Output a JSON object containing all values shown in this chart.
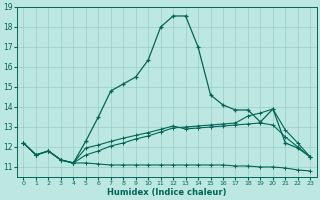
{
  "xlabel": "Humidex (Indice chaleur)",
  "bg_color": "#bde8e2",
  "grid_color": "#99cccc",
  "line_color": "#006655",
  "xlim": [
    -0.5,
    23.5
  ],
  "ylim": [
    10.5,
    19.0
  ],
  "xticks": [
    0,
    1,
    2,
    3,
    4,
    5,
    6,
    7,
    8,
    9,
    10,
    11,
    12,
    13,
    14,
    15,
    16,
    17,
    18,
    19,
    20,
    21,
    22,
    23
  ],
  "yticks": [
    11,
    12,
    13,
    14,
    15,
    16,
    17,
    18,
    19
  ],
  "line1_x": [
    0,
    1,
    2,
    3,
    4,
    5,
    6,
    7,
    8,
    9,
    10,
    11,
    12,
    13,
    14,
    15,
    16,
    17,
    18,
    19,
    20,
    21,
    22,
    23
  ],
  "line1_y": [
    12.2,
    11.6,
    11.8,
    11.35,
    11.2,
    12.3,
    13.5,
    14.8,
    15.15,
    15.5,
    16.35,
    18.0,
    18.55,
    18.55,
    17.0,
    14.6,
    14.1,
    13.85,
    13.85,
    13.25,
    13.9,
    12.2,
    11.95,
    11.5
  ],
  "line2_x": [
    0,
    1,
    2,
    3,
    4,
    5,
    6,
    7,
    8,
    9,
    10,
    11,
    12,
    13,
    14,
    15,
    16,
    17,
    18,
    19,
    20,
    21,
    22,
    23
  ],
  "line2_y": [
    12.2,
    11.6,
    11.8,
    11.35,
    11.2,
    11.6,
    11.8,
    12.05,
    12.2,
    12.4,
    12.55,
    12.75,
    12.95,
    13.0,
    13.05,
    13.1,
    13.15,
    13.2,
    13.55,
    13.7,
    13.9,
    12.85,
    12.2,
    11.5
  ],
  "line3_x": [
    0,
    1,
    2,
    3,
    4,
    5,
    6,
    7,
    8,
    9,
    10,
    11,
    12,
    13,
    14,
    15,
    16,
    17,
    18,
    19,
    20,
    21,
    22,
    23
  ],
  "line3_y": [
    12.2,
    11.6,
    11.8,
    11.35,
    11.2,
    11.2,
    11.15,
    11.1,
    11.1,
    11.1,
    11.1,
    11.1,
    11.1,
    11.1,
    11.1,
    11.1,
    11.1,
    11.05,
    11.05,
    11.0,
    11.0,
    10.95,
    10.85,
    10.8
  ],
  "line4_x": [
    0,
    1,
    2,
    3,
    4,
    5,
    6,
    7,
    8,
    9,
    10,
    11,
    12,
    13,
    14,
    15,
    16,
    17,
    18,
    19,
    20,
    21,
    22,
    23
  ],
  "line4_y": [
    12.2,
    11.6,
    11.8,
    11.35,
    11.2,
    11.95,
    12.1,
    12.28,
    12.44,
    12.58,
    12.72,
    12.88,
    13.05,
    12.9,
    12.95,
    13.0,
    13.05,
    13.1,
    13.15,
    13.2,
    13.1,
    12.5,
    12.0,
    11.5
  ]
}
